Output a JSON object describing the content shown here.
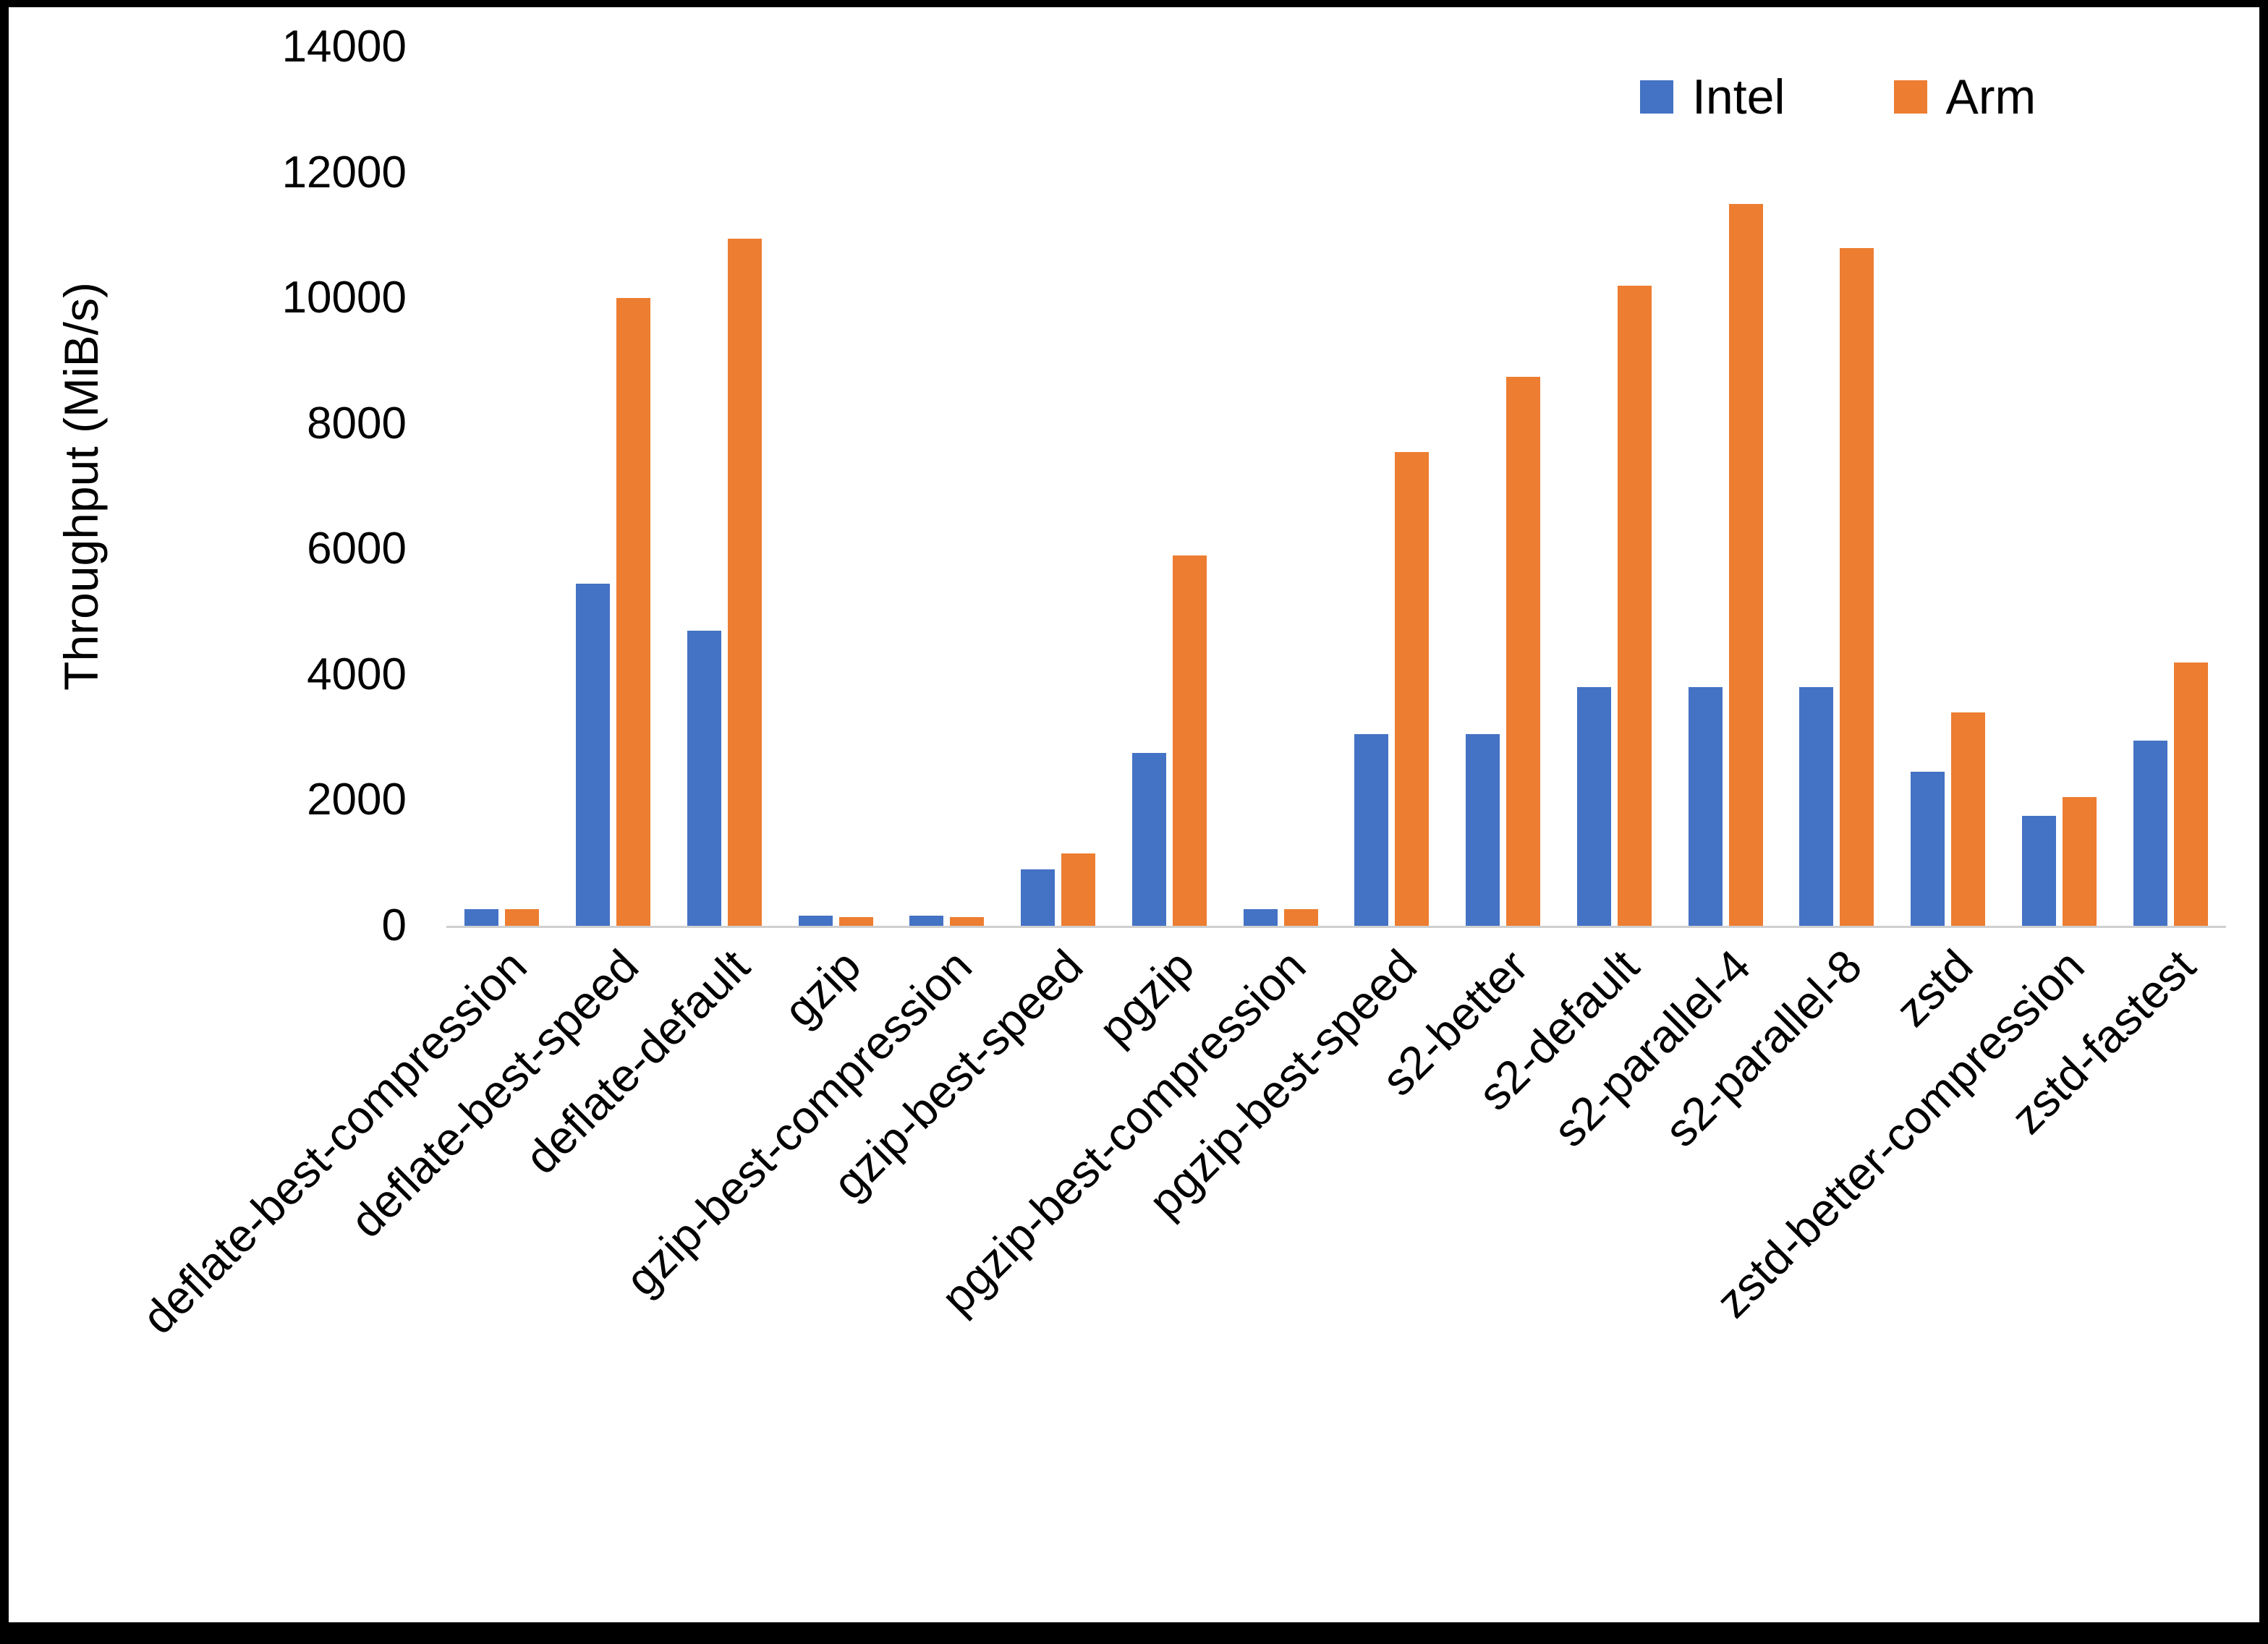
{
  "chart_data": {
    "type": "bar",
    "title": "",
    "ylabel": "Throughput (MiB/s)",
    "xlabel": "",
    "ylim": [
      0,
      14000
    ],
    "ytick_step": 2000,
    "grid": false,
    "legend_position": "top-right",
    "categories": [
      "deflate-best-compression",
      "deflate-best-speed",
      "deflate-default",
      "gzip",
      "gzip-best-compression",
      "gzip-best-speed",
      "pgzip",
      "pgzip-best-compression",
      "pgzip-best-speed",
      "s2-better",
      "s2-default",
      "s2-parallel-4",
      "s2-parallel-8",
      "zstd",
      "zstd-better-compression",
      "zstd-fastest"
    ],
    "series": [
      {
        "name": "Intel",
        "color": "#4472C4",
        "values": [
          260,
          5450,
          4700,
          160,
          160,
          900,
          2750,
          260,
          3050,
          3050,
          3800,
          3800,
          3800,
          2450,
          1750,
          2950
        ]
      },
      {
        "name": "Arm",
        "color": "#ED7D31",
        "values": [
          260,
          10000,
          10950,
          140,
          140,
          1150,
          5900,
          260,
          7550,
          8750,
          10200,
          11500,
          10800,
          3400,
          2050,
          4200
        ]
      }
    ]
  }
}
